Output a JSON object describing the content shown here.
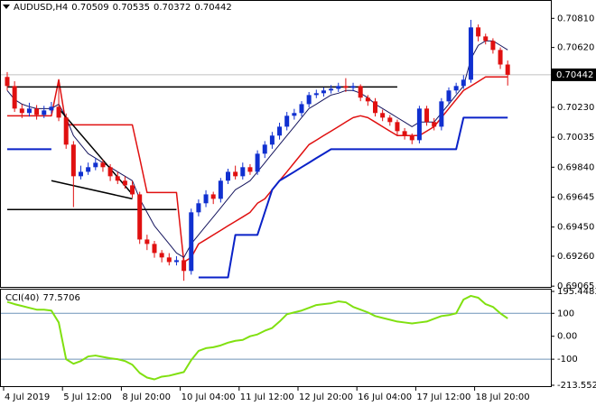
{
  "chart_data": {
    "type": "candlestick",
    "symbol": "AUDUSD,H4",
    "categories": [
      "4 Jul 2019",
      null,
      null,
      null,
      null,
      null,
      null,
      null,
      "5 Jul 12:00",
      null,
      null,
      null,
      null,
      null,
      null,
      null,
      "8 Jul 20:00",
      null,
      null,
      null,
      null,
      null,
      null,
      null,
      "10 Jul 04:00",
      null,
      null,
      null,
      null,
      null,
      null,
      null,
      "11 Jul 12:00",
      null,
      null,
      null,
      null,
      null,
      null,
      null,
      "12 Jul 20:00",
      null,
      null,
      null,
      null,
      null,
      null,
      null,
      "16 Jul 04:00",
      null,
      null,
      null,
      null,
      null,
      null,
      null,
      "17 Jul 12:00",
      null,
      null,
      null,
      null,
      null,
      null,
      null,
      "18 Jul 20:00",
      null,
      null,
      null,
      null
    ],
    "open": [
      0.70428,
      0.70369,
      0.70222,
      0.70193,
      0.70222,
      0.70181,
      0.7021,
      0.70234,
      0.70163,
      0.69987,
      0.69781,
      0.6981,
      0.6984,
      0.69869,
      0.6984,
      0.69781,
      0.69752,
      0.69722,
      0.69663,
      0.69369,
      0.6934,
      0.69281,
      0.69252,
      0.69222,
      0.69234,
      0.69164,
      0.69546,
      0.69605,
      0.69663,
      0.69634,
      0.69752,
      0.6981,
      0.69781,
      0.6984,
      0.6981,
      0.69928,
      0.69987,
      0.70046,
      0.70104,
      0.70175,
      0.70193,
      0.70251,
      0.7031,
      0.70322,
      0.7034,
      0.70351,
      0.70369,
      0.70357,
      0.70369,
      0.70293,
      0.70269,
      0.70193,
      0.70163,
      0.70134,
      0.70075,
      0.70046,
      0.70016,
      0.70222,
      0.70134,
      0.70104,
      0.70269,
      0.7034,
      0.70369,
      0.7041,
      0.70751,
      0.70692,
      0.70663,
      0.70604,
      0.70509
    ],
    "high": [
      0.7046,
      0.704,
      0.7025,
      0.7026,
      0.70245,
      0.7024,
      0.70265,
      0.7041,
      0.7019,
      0.7001,
      0.6985,
      0.6987,
      0.699,
      0.6989,
      0.6986,
      0.6981,
      0.6978,
      0.6975,
      0.6968,
      0.694,
      0.6936,
      0.693,
      0.6928,
      0.6926,
      0.6925,
      0.6957,
      0.6963,
      0.6969,
      0.6968,
      0.6977,
      0.6983,
      0.6985,
      0.6987,
      0.6986,
      0.6995,
      0.7001,
      0.7007,
      0.7013,
      0.702,
      0.7022,
      0.7027,
      0.7033,
      0.70345,
      0.7036,
      0.70375,
      0.7039,
      0.7042,
      0.7039,
      0.7038,
      0.7031,
      0.7029,
      0.70215,
      0.7018,
      0.7015,
      0.70095,
      0.7006,
      0.7024,
      0.7024,
      0.7016,
      0.7029,
      0.7036,
      0.7039,
      0.7044,
      0.708,
      0.7077,
      0.7071,
      0.7068,
      0.7062,
      0.70535
    ],
    "low": [
      0.7034,
      0.702,
      0.7016,
      0.7017,
      0.7015,
      0.7016,
      0.7019,
      0.7014,
      0.6996,
      0.6958,
      0.6976,
      0.6979,
      0.6982,
      0.6981,
      0.6975,
      0.6973,
      0.697,
      0.6964,
      0.6934,
      0.693,
      0.6925,
      0.6922,
      0.692,
      0.692,
      0.691,
      0.6914,
      0.6952,
      0.6958,
      0.696,
      0.6961,
      0.6973,
      0.6976,
      0.6976,
      0.6979,
      0.6979,
      0.699,
      0.6996,
      0.7002,
      0.7008,
      0.7015,
      0.7017,
      0.7023,
      0.7029,
      0.703,
      0.7032,
      0.7033,
      0.7033,
      0.70335,
      0.7027,
      0.7024,
      0.7017,
      0.7014,
      0.7011,
      0.7005,
      0.7002,
      0.6999,
      0.69995,
      0.7011,
      0.7008,
      0.7008,
      0.7025,
      0.7032,
      0.7035,
      0.7039,
      0.7066,
      0.7064,
      0.7058,
      0.7048,
      0.70372
    ],
    "close": [
      0.70369,
      0.70222,
      0.70193,
      0.70222,
      0.70181,
      0.7021,
      0.70234,
      0.70163,
      0.69987,
      0.69781,
      0.6981,
      0.6984,
      0.69869,
      0.6984,
      0.69781,
      0.69752,
      0.69722,
      0.69663,
      0.69369,
      0.6934,
      0.69281,
      0.69252,
      0.69222,
      0.69234,
      0.69164,
      0.69546,
      0.69605,
      0.69663,
      0.69634,
      0.69752,
      0.6981,
      0.69781,
      0.6984,
      0.6981,
      0.69928,
      0.69987,
      0.70046,
      0.70104,
      0.70175,
      0.70193,
      0.70251,
      0.7031,
      0.70322,
      0.7034,
      0.70351,
      0.70369,
      0.70357,
      0.70369,
      0.70293,
      0.70269,
      0.70193,
      0.70163,
      0.70134,
      0.70075,
      0.70046,
      0.70016,
      0.70222,
      0.70134,
      0.70104,
      0.70269,
      0.7034,
      0.70369,
      0.7041,
      0.70751,
      0.70692,
      0.70663,
      0.70604,
      0.70509,
      0.70442
    ],
    "up_color": "#1030d0",
    "down_color": "#e01010",
    "ylim": [
      0.6906,
      0.709
    ],
    "yticks": [
      {
        "value": 0.7081,
        "label": "0.70810"
      },
      {
        "value": 0.7062,
        "label": "0.70620"
      },
      {
        "value": 0.7023,
        "label": "0.70230"
      },
      0.70035,
      {
        "value": 0.6984,
        "label": "0.69840"
      },
      0.69645,
      {
        "value": 0.6945,
        "label": "0.69450"
      },
      {
        "value": 0.6926,
        "label": "0.69260"
      },
      0.69065
    ],
    "overlays": [
      {
        "color": "#e01010",
        "width": 1.5,
        "values": [
          0.70175,
          0.70175,
          0.70175,
          0.70175,
          0.70175,
          0.70175,
          0.70175,
          0.7041,
          0.70116,
          0.70116,
          0.70116,
          0.70116,
          0.70116,
          0.70116,
          0.70116,
          0.70116,
          0.70116,
          0.70116,
          0.69899,
          0.69675,
          0.69675,
          0.69675,
          0.69675,
          0.69675,
          0.69222,
          0.69252,
          0.6934,
          0.69369,
          0.69399,
          0.69428,
          0.69458,
          0.69487,
          0.69516,
          0.69546,
          0.69605,
          0.69634,
          0.69693,
          0.69752,
          0.6981,
          0.69869,
          0.69928,
          0.69987,
          0.70016,
          0.70046,
          0.70075,
          0.70104,
          0.70134,
          0.70163,
          0.70175,
          0.70163,
          0.70134,
          0.70104,
          0.70075,
          0.70046,
          0.70046,
          0.70046,
          0.70046,
          0.70075,
          0.70104,
          0.70163,
          0.70222,
          0.70281,
          0.7034,
          0.70369,
          0.70398,
          0.70428,
          0.70428,
          0.70428,
          0.70428
        ]
      },
      {
        "color": "#15155e",
        "width": 1,
        "values": [
          0.7034,
          0.70281,
          0.70251,
          0.70234,
          0.70222,
          0.70222,
          0.70222,
          0.70251,
          0.70163,
          0.70046,
          0.69987,
          0.69928,
          0.69899,
          0.69869,
          0.6984,
          0.6981,
          0.69781,
          0.69752,
          0.69634,
          0.69546,
          0.69458,
          0.69399,
          0.6934,
          0.69281,
          0.69252,
          0.6934,
          0.69399,
          0.69458,
          0.69516,
          0.69575,
          0.69634,
          0.69693,
          0.69722,
          0.69752,
          0.6981,
          0.69869,
          0.69928,
          0.69987,
          0.70046,
          0.70104,
          0.70163,
          0.70222,
          0.70251,
          0.70281,
          0.7031,
          0.70322,
          0.7034,
          0.7034,
          0.70322,
          0.70293,
          0.70251,
          0.70222,
          0.70193,
          0.70163,
          0.70134,
          0.70104,
          0.70134,
          0.70134,
          0.70134,
          0.70193,
          0.70251,
          0.7031,
          0.70369,
          0.70545,
          0.70634,
          0.70663,
          0.70663,
          0.70634,
          0.70604
        ]
      },
      {
        "color": "#0a22c8",
        "width": 2,
        "values": [
          0.69957,
          0.69957,
          0.69957,
          0.69957,
          0.69957,
          0.69957,
          0.69957,
          null,
          null,
          null,
          null,
          null,
          null,
          null,
          null,
          null,
          null,
          null,
          null,
          null,
          null,
          null,
          null,
          null,
          null,
          null,
          0.69122,
          0.69122,
          0.69122,
          0.69122,
          0.69122,
          0.69399,
          0.69399,
          0.69399,
          0.69399,
          0.69546,
          0.69693,
          0.69752,
          0.69781,
          0.6981,
          0.6984,
          0.69869,
          0.69899,
          0.69928,
          0.69957,
          0.69957,
          0.69957,
          0.69957,
          0.69957,
          0.69957,
          0.69957,
          0.69957,
          0.69957,
          0.69957,
          0.69957,
          0.69957,
          0.69957,
          0.69957,
          0.69957,
          0.69957,
          0.69957,
          0.69957,
          0.70163,
          0.70163,
          0.70163,
          0.70163,
          0.70163,
          0.70163,
          0.70163
        ]
      }
    ],
    "trendlines": [
      {
        "color": "#000000",
        "x": [
          0,
          53
        ],
        "y": [
          0.70363,
          0.70363
        ]
      },
      {
        "color": "#000000",
        "x": [
          0,
          23
        ],
        "y": [
          0.69564,
          0.69564
        ]
      },
      {
        "color": "#000000",
        "x": [
          7,
          17
        ],
        "y": [
          0.70222,
          0.69663
        ]
      },
      {
        "color": "#000000",
        "x": [
          6,
          17
        ],
        "y": [
          0.69752,
          0.69634
        ]
      }
    ],
    "indicator": {
      "name": "CCI(40)",
      "color": "#80e010",
      "values": [
        150,
        140,
        132,
        124,
        116,
        116,
        112,
        60,
        -100,
        -120,
        -108,
        -88,
        -84,
        -90,
        -96,
        -100,
        -108,
        -124,
        -160,
        -180,
        -188,
        -176,
        -172,
        -164,
        -156,
        -104,
        -64,
        -52,
        -48,
        -40,
        -28,
        -20,
        -16,
        0,
        8,
        24,
        36,
        64,
        96,
        104,
        112,
        124,
        136,
        140,
        144,
        152,
        148,
        128,
        116,
        104,
        88,
        80,
        72,
        64,
        60,
        56,
        60,
        64,
        76,
        88,
        92,
        100,
        160,
        176,
        168,
        140,
        128,
        100,
        77.5706
      ],
      "ylim": [
        -213.5528,
        195.4483
      ],
      "yticks": [
        195.4483,
        100,
        {
          "value": 0,
          "label": "0.00"
        },
        -100,
        -213.5528
      ],
      "levels": [
        100,
        -100
      ],
      "level_color": "#6f93b8"
    }
  }
}
